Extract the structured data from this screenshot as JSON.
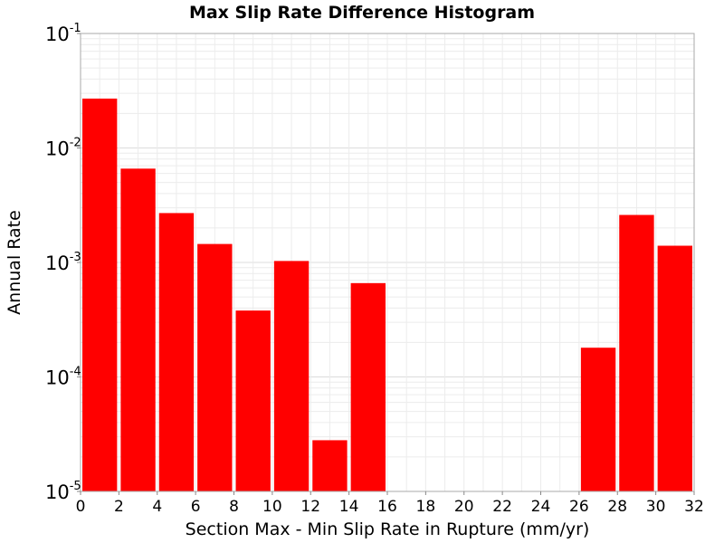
{
  "chart_data": {
    "type": "bar",
    "title": "Max Slip Rate Difference Histogram",
    "xlabel": "Section Max - Min Slip Rate in Rupture (mm/yr)",
    "ylabel": "Annual Rate",
    "xlim": [
      0,
      32
    ],
    "ylim": [
      1e-05,
      0.1
    ],
    "yscale": "log",
    "grid": true,
    "x_ticks": [
      "0",
      "2",
      "4",
      "6",
      "8",
      "10",
      "12",
      "14",
      "16",
      "18",
      "20",
      "22",
      "24",
      "26",
      "28",
      "30",
      "32"
    ],
    "y_ticks": [
      {
        "base": "10",
        "exp": "-1",
        "value": 0.1
      },
      {
        "base": "10",
        "exp": "-2",
        "value": 0.01
      },
      {
        "base": "10",
        "exp": "-3",
        "value": 0.001
      },
      {
        "base": "10",
        "exp": "-4",
        "value": 0.0001
      },
      {
        "base": "10",
        "exp": "-5",
        "value": 1e-05
      }
    ],
    "bar_color": "#ff0000",
    "bins": [
      {
        "x0": 0,
        "x1": 2,
        "value": 0.027
      },
      {
        "x0": 2,
        "x1": 4,
        "value": 0.0066
      },
      {
        "x0": 4,
        "x1": 6,
        "value": 0.0027
      },
      {
        "x0": 6,
        "x1": 8,
        "value": 0.00145
      },
      {
        "x0": 8,
        "x1": 10,
        "value": 0.00038
      },
      {
        "x0": 10,
        "x1": 12,
        "value": 0.00103
      },
      {
        "x0": 12,
        "x1": 14,
        "value": 2.8e-05
      },
      {
        "x0": 14,
        "x1": 16,
        "value": 0.00066
      },
      {
        "x0": 26,
        "x1": 28,
        "value": 0.00018
      },
      {
        "x0": 28,
        "x1": 30,
        "value": 0.0026
      },
      {
        "x0": 30,
        "x1": 32,
        "value": 0.0014
      }
    ]
  }
}
